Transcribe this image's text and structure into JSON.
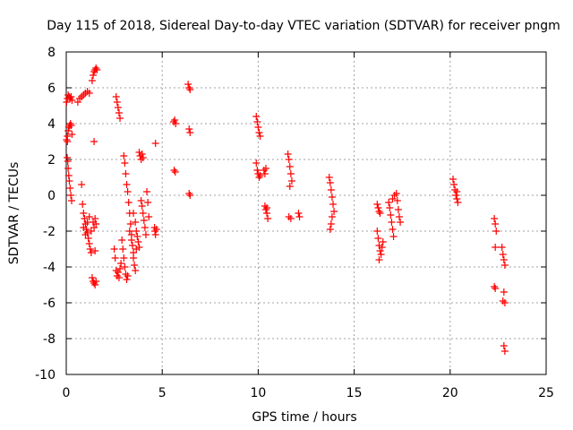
{
  "chart_data": {
    "type": "scatter",
    "title": "Day 115 of 2018, Sidereal Day-to-day VTEC variation (SDTVAR) for receiver pngm",
    "xlabel": "GPS time / hours",
    "ylabel": "SDTVAR / TECUs",
    "xlim": [
      0,
      25
    ],
    "ylim": [
      -10,
      8
    ],
    "xticks": [
      "0",
      "5",
      "10",
      "15",
      "20",
      "25"
    ],
    "yticks": [
      "-10",
      "-8",
      "-6",
      "-4",
      "-2",
      "0",
      "2",
      "4",
      "6",
      "8"
    ],
    "grid": true,
    "marker": "+",
    "marker_color": "#ff0000",
    "series": [
      {
        "name": "SDTVAR",
        "points": [
          [
            0.02,
            5.2
          ],
          [
            0.06,
            5.4
          ],
          [
            0.1,
            5.6
          ],
          [
            0.15,
            5.5
          ],
          [
            0.2,
            5.4
          ],
          [
            0.25,
            5.5
          ],
          [
            0.3,
            5.3
          ],
          [
            0.02,
            3.1
          ],
          [
            0.06,
            3.3
          ],
          [
            0.1,
            3.6
          ],
          [
            0.14,
            3.8
          ],
          [
            0.18,
            3.9
          ],
          [
            0.22,
            4.0
          ],
          [
            0.26,
            3.9
          ],
          [
            0.3,
            3.4
          ],
          [
            0.06,
            3.0
          ],
          [
            0.05,
            2.1
          ],
          [
            0.08,
            1.9
          ],
          [
            0.1,
            1.5
          ],
          [
            0.13,
            1.1
          ],
          [
            0.16,
            0.8
          ],
          [
            0.2,
            0.4
          ],
          [
            0.24,
            0.0
          ],
          [
            0.28,
            -0.3
          ],
          [
            0.6,
            5.2
          ],
          [
            0.7,
            5.4
          ],
          [
            0.8,
            5.5
          ],
          [
            0.9,
            5.6
          ],
          [
            1.0,
            5.7
          ],
          [
            1.1,
            5.8
          ],
          [
            1.2,
            5.7
          ],
          [
            1.35,
            6.4
          ],
          [
            1.4,
            6.7
          ],
          [
            1.45,
            6.9
          ],
          [
            1.5,
            7.0
          ],
          [
            1.55,
            7.1
          ],
          [
            1.6,
            7.0
          ],
          [
            1.45,
            3.0
          ],
          [
            0.8,
            0.6
          ],
          [
            0.85,
            -0.5
          ],
          [
            0.9,
            -1.0
          ],
          [
            0.95,
            -1.3
          ],
          [
            1.0,
            -1.6
          ],
          [
            1.05,
            -1.9
          ],
          [
            1.1,
            -2.1
          ],
          [
            1.15,
            -2.4
          ],
          [
            1.2,
            -2.7
          ],
          [
            1.25,
            -3.0
          ],
          [
            1.3,
            -3.2
          ],
          [
            0.9,
            -1.8
          ],
          [
            1.0,
            -2.2
          ],
          [
            1.1,
            -1.5
          ],
          [
            1.2,
            -1.2
          ],
          [
            1.3,
            -2.0
          ],
          [
            1.4,
            -1.5
          ],
          [
            1.45,
            -1.8
          ],
          [
            1.5,
            -1.3
          ],
          [
            1.55,
            -1.6
          ],
          [
            1.5,
            -3.1
          ],
          [
            1.35,
            -4.6
          ],
          [
            1.4,
            -4.8
          ],
          [
            1.45,
            -4.9
          ],
          [
            1.5,
            -5.0
          ],
          [
            1.55,
            -4.8
          ],
          [
            2.5,
            -3.0
          ],
          [
            2.55,
            -3.5
          ],
          [
            2.6,
            -4.2
          ],
          [
            2.65,
            -4.5
          ],
          [
            2.7,
            -4.3
          ],
          [
            2.75,
            -4.6
          ],
          [
            2.8,
            -4.1
          ],
          [
            2.85,
            -3.8
          ],
          [
            2.6,
            5.5
          ],
          [
            2.65,
            5.2
          ],
          [
            2.7,
            4.9
          ],
          [
            2.75,
            4.6
          ],
          [
            2.8,
            4.3
          ],
          [
            2.9,
            -2.5
          ],
          [
            2.95,
            -3.0
          ],
          [
            3.0,
            -3.5
          ],
          [
            3.05,
            -4.0
          ],
          [
            3.1,
            -4.4
          ],
          [
            3.15,
            -4.7
          ],
          [
            3.2,
            -4.5
          ],
          [
            3.0,
            2.2
          ],
          [
            3.05,
            1.8
          ],
          [
            3.1,
            1.2
          ],
          [
            3.15,
            0.6
          ],
          [
            3.2,
            0.2
          ],
          [
            3.25,
            -0.4
          ],
          [
            3.3,
            -1.0
          ],
          [
            3.35,
            -1.6
          ],
          [
            3.4,
            -2.2
          ],
          [
            3.45,
            -2.8
          ],
          [
            3.5,
            -3.2
          ],
          [
            3.3,
            -2.0
          ],
          [
            3.4,
            -2.5
          ],
          [
            3.5,
            -3.5
          ],
          [
            3.55,
            -3.9
          ],
          [
            3.6,
            -4.2
          ],
          [
            3.65,
            -3.0
          ],
          [
            3.5,
            -1.0
          ],
          [
            3.6,
            -1.5
          ],
          [
            3.65,
            -2.0
          ],
          [
            3.7,
            -2.3
          ],
          [
            3.75,
            -2.6
          ],
          [
            3.8,
            -2.9
          ],
          [
            3.8,
            2.4
          ],
          [
            3.85,
            2.2
          ],
          [
            3.9,
            2.0
          ],
          [
            3.95,
            2.3
          ],
          [
            4.0,
            2.1
          ],
          [
            3.9,
            -0.3
          ],
          [
            3.95,
            -0.6
          ],
          [
            4.0,
            -1.0
          ],
          [
            4.05,
            -1.4
          ],
          [
            4.1,
            -1.8
          ],
          [
            4.15,
            -2.2
          ],
          [
            4.2,
            0.2
          ],
          [
            4.25,
            -0.4
          ],
          [
            4.3,
            -1.2
          ],
          [
            4.6,
            -1.8
          ],
          [
            4.62,
            -2.0
          ],
          [
            4.65,
            -2.2
          ],
          [
            4.7,
            -1.9
          ],
          [
            4.65,
            2.9
          ],
          [
            5.6,
            4.1
          ],
          [
            5.65,
            4.2
          ],
          [
            5.7,
            4.0
          ],
          [
            5.62,
            1.4
          ],
          [
            5.68,
            1.3
          ],
          [
            6.35,
            6.2
          ],
          [
            6.4,
            6.0
          ],
          [
            6.45,
            5.9
          ],
          [
            6.4,
            3.7
          ],
          [
            6.45,
            3.5
          ],
          [
            6.4,
            0.1
          ],
          [
            6.45,
            0.0
          ],
          [
            9.9,
            4.4
          ],
          [
            9.95,
            4.1
          ],
          [
            10.0,
            3.8
          ],
          [
            10.05,
            3.5
          ],
          [
            10.1,
            3.3
          ],
          [
            9.9,
            1.8
          ],
          [
            9.95,
            1.4
          ],
          [
            10.0,
            1.2
          ],
          [
            10.05,
            1.0
          ],
          [
            10.1,
            1.1
          ],
          [
            10.3,
            1.4
          ],
          [
            10.35,
            1.2
          ],
          [
            10.4,
            1.5
          ],
          [
            10.35,
            -0.6
          ],
          [
            10.4,
            -0.8
          ],
          [
            10.45,
            -1.0
          ],
          [
            10.5,
            -1.3
          ],
          [
            10.45,
            -0.7
          ],
          [
            11.55,
            2.3
          ],
          [
            11.6,
            2.0
          ],
          [
            11.65,
            1.6
          ],
          [
            11.7,
            1.2
          ],
          [
            11.75,
            0.8
          ],
          [
            11.65,
            0.5
          ],
          [
            11.6,
            -1.2
          ],
          [
            11.7,
            -1.3
          ],
          [
            12.1,
            -1.0
          ],
          [
            12.15,
            -1.2
          ],
          [
            13.7,
            1.0
          ],
          [
            13.75,
            0.7
          ],
          [
            13.8,
            0.3
          ],
          [
            13.85,
            -0.1
          ],
          [
            13.9,
            -0.5
          ],
          [
            13.95,
            -0.9
          ],
          [
            13.85,
            -1.2
          ],
          [
            13.8,
            -1.6
          ],
          [
            13.75,
            -1.9
          ],
          [
            16.2,
            -0.5
          ],
          [
            16.25,
            -0.7
          ],
          [
            16.3,
            -0.9
          ],
          [
            16.35,
            -1.0
          ],
          [
            16.2,
            -2.0
          ],
          [
            16.25,
            -2.4
          ],
          [
            16.3,
            -2.8
          ],
          [
            16.35,
            -3.1
          ],
          [
            16.4,
            -3.3
          ],
          [
            16.3,
            -3.6
          ],
          [
            16.45,
            -2.9
          ],
          [
            16.5,
            -2.6
          ],
          [
            16.8,
            -0.4
          ],
          [
            16.85,
            -0.7
          ],
          [
            16.9,
            -1.1
          ],
          [
            16.95,
            -1.5
          ],
          [
            17.0,
            -1.9
          ],
          [
            17.05,
            -2.3
          ],
          [
            17.0,
            -0.2
          ],
          [
            17.1,
            0.0
          ],
          [
            17.2,
            0.1
          ],
          [
            17.25,
            -0.3
          ],
          [
            17.3,
            -0.8
          ],
          [
            17.35,
            -1.2
          ],
          [
            17.4,
            -1.5
          ],
          [
            20.15,
            0.9
          ],
          [
            20.2,
            0.6
          ],
          [
            20.25,
            0.3
          ],
          [
            20.3,
            0.0
          ],
          [
            20.35,
            -0.2
          ],
          [
            20.4,
            -0.4
          ],
          [
            20.35,
            0.2
          ],
          [
            22.3,
            -1.3
          ],
          [
            22.35,
            -1.6
          ],
          [
            22.4,
            -2.0
          ],
          [
            22.35,
            -2.9
          ],
          [
            22.3,
            -5.1
          ],
          [
            22.35,
            -5.2
          ],
          [
            22.7,
            -2.9
          ],
          [
            22.75,
            -3.3
          ],
          [
            22.8,
            -3.6
          ],
          [
            22.85,
            -3.9
          ],
          [
            22.8,
            -5.4
          ],
          [
            22.75,
            -5.9
          ],
          [
            22.85,
            -6.0
          ],
          [
            22.8,
            -8.4
          ],
          [
            22.85,
            -8.7
          ]
        ]
      }
    ]
  }
}
